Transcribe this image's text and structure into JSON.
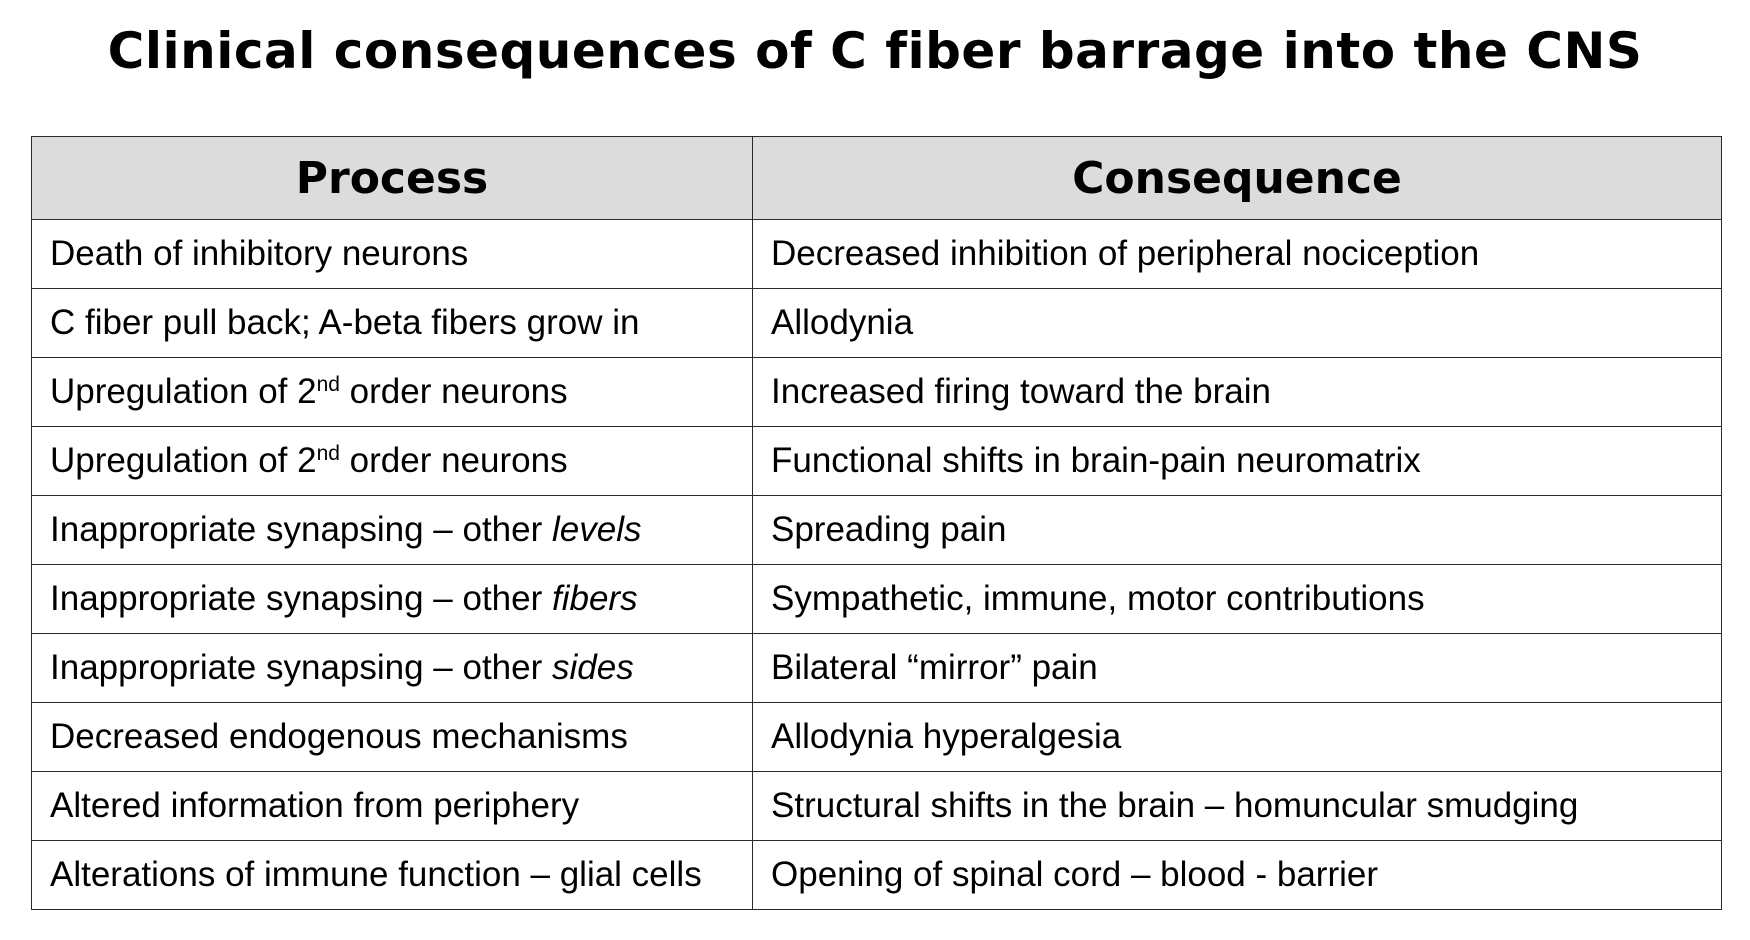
{
  "title": "Clinical consequences of C fiber barrage into the CNS",
  "table": {
    "headers": {
      "process": "Process",
      "consequence": "Consequence"
    },
    "rows": [
      {
        "process": {
          "pre": "Death of inhibitory neurons",
          "sup": "",
          "post": "",
          "em": "",
          "tail": ""
        },
        "consequence": "Decreased inhibition of peripheral nociception"
      },
      {
        "process": {
          "pre": "C fiber pull back; A-beta fibers grow in",
          "sup": "",
          "post": "",
          "em": "",
          "tail": ""
        },
        "consequence": "Allodynia"
      },
      {
        "process": {
          "pre": "Upregulation of 2",
          "sup": "nd",
          "post": " order neurons",
          "em": "",
          "tail": ""
        },
        "consequence": "Increased firing toward the brain"
      },
      {
        "process": {
          "pre": "Upregulation of 2",
          "sup": "nd",
          "post": " order neurons",
          "em": "",
          "tail": ""
        },
        "consequence": "Functional shifts in brain-pain neuromatrix"
      },
      {
        "process": {
          "pre": "Inappropriate synapsing – other ",
          "sup": "",
          "post": "",
          "em": "levels",
          "tail": ""
        },
        "consequence": "Spreading pain"
      },
      {
        "process": {
          "pre": "Inappropriate synapsing – other ",
          "sup": "",
          "post": "",
          "em": "fibers",
          "tail": ""
        },
        "consequence": "Sympathetic, immune, motor contributions"
      },
      {
        "process": {
          "pre": "Inappropriate synapsing – other ",
          "sup": "",
          "post": "",
          "em": "sides",
          "tail": ""
        },
        "consequence": "Bilateral “mirror” pain"
      },
      {
        "process": {
          "pre": "Decreased endogenous mechanisms",
          "sup": "",
          "post": "",
          "em": "",
          "tail": ""
        },
        "consequence": "Allodynia hyperalgesia"
      },
      {
        "process": {
          "pre": "Altered information from periphery",
          "sup": "",
          "post": "",
          "em": "",
          "tail": ""
        },
        "consequence": "Structural shifts in the brain – homuncular smudging"
      },
      {
        "process": {
          "pre": "Alterations of immune function – glial cells",
          "sup": "",
          "post": "",
          "em": "",
          "tail": ""
        },
        "consequence": "Opening of spinal cord – blood - barrier"
      }
    ]
  }
}
